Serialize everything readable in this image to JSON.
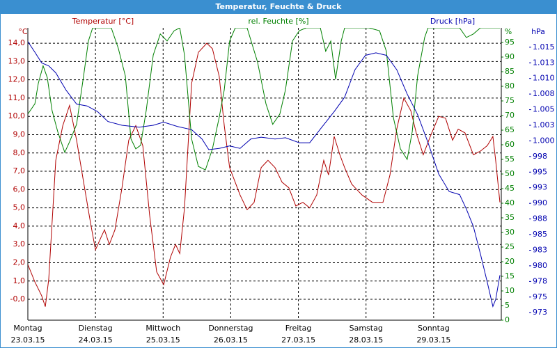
{
  "chart_data": {
    "type": "line",
    "title": "Temperatur, Feuchte & Druck",
    "y_unit": "°C",
    "y2_unit": "%",
    "y3_unit": "hPa",
    "xlim": [
      0,
      168
    ],
    "xticks": [
      {
        "value": 0,
        "label": "Montag",
        "date": "23.03.15"
      },
      {
        "value": 24,
        "label": "Dienstag",
        "date": "24.03.15"
      },
      {
        "value": 48,
        "label": "Mittwoch",
        "date": "25.03.15"
      },
      {
        "value": 72,
        "label": "Donnerstag",
        "date": "26.03.15"
      },
      {
        "value": 96,
        "label": "Freitag",
        "date": "27.03.15"
      },
      {
        "value": 120,
        "label": "Samstag",
        "date": "28.03.15"
      },
      {
        "value": 144,
        "label": "Sonntag",
        "date": "29.03.15"
      }
    ],
    "grid": true,
    "ylim": [
      -1.14,
      14.84
    ],
    "yticks": [
      {
        "value": 0,
        "label": "-0,0"
      },
      {
        "value": 1,
        "label": "1,0"
      },
      {
        "value": 2,
        "label": "2,0"
      },
      {
        "value": 3,
        "label": "3,0"
      },
      {
        "value": 4,
        "label": "4,0"
      },
      {
        "value": 5,
        "label": "5,0"
      },
      {
        "value": 6,
        "label": "6,0"
      },
      {
        "value": 7,
        "label": "7,0"
      },
      {
        "value": 8,
        "label": "8,0"
      },
      {
        "value": 9,
        "label": "9,0"
      },
      {
        "value": 10,
        "label": "10,0"
      },
      {
        "value": 11,
        "label": "11,0"
      },
      {
        "value": 12,
        "label": "12,0"
      },
      {
        "value": 13,
        "label": "13,0"
      },
      {
        "value": 14,
        "label": "14,0"
      }
    ],
    "y2lim": [
      0,
      100
    ],
    "y2ticks": [
      0,
      5,
      10,
      15,
      20,
      25,
      30,
      35,
      40,
      45,
      50,
      55,
      60,
      65,
      70,
      75,
      80,
      85,
      90,
      95
    ],
    "y3lim": [
      971.3,
      1018.1
    ],
    "y3ticks": [
      {
        "value": 972.5,
        "label": "973"
      },
      {
        "value": 975,
        "label": "975"
      },
      {
        "value": 977.5,
        "label": "978"
      },
      {
        "value": 980,
        "label": "980"
      },
      {
        "value": 982.5,
        "label": "983"
      },
      {
        "value": 985,
        "label": "985"
      },
      {
        "value": 987.5,
        "label": "988"
      },
      {
        "value": 990,
        "label": "990"
      },
      {
        "value": 992.5,
        "label": "993"
      },
      {
        "value": 995,
        "label": "995"
      },
      {
        "value": 997.5,
        "label": "998"
      },
      {
        "value": 1000,
        "label": "1.000"
      },
      {
        "value": 1002.5,
        "label": "1.003"
      },
      {
        "value": 1005,
        "label": "1.005"
      },
      {
        "value": 1007.5,
        "label": "1.008"
      },
      {
        "value": 1010,
        "label": "1.010"
      },
      {
        "value": 1012.5,
        "label": "1.013"
      },
      {
        "value": 1015,
        "label": "1.015"
      }
    ],
    "series": [
      {
        "name": "Temperatur [°C]",
        "color": "#b00000",
        "axis": "y",
        "x": [
          0,
          2.5,
          4.9,
          6.2,
          7.4,
          9.9,
          12.4,
          14.8,
          17.3,
          19.8,
          22.2,
          24,
          26,
          27.2,
          28.9,
          30.9,
          33.4,
          35.8,
          38.3,
          40.8,
          43.2,
          45.7,
          48.2,
          50.6,
          52.4,
          53.9,
          55.6,
          58.1,
          60.5,
          63.5,
          65.5,
          67.9,
          69.7,
          71.6,
          75.3,
          77.8,
          80.3,
          82.8,
          85.2,
          87.7,
          90.2,
          92.6,
          95.1,
          97.6,
          100,
          102.5,
          105,
          106.7,
          108.7,
          110.7,
          112.4,
          114.9,
          118.6,
          122.3,
          126,
          128.5,
          130.9,
          133.4,
          135.9,
          137.8,
          140.3,
          142.8,
          145.8,
          148.2,
          150.7,
          152.7,
          155.1,
          158.1,
          160.6,
          163,
          165,
          166,
          167.5
        ],
        "values": [
          1.9,
          0.95,
          0.2,
          -0.4,
          1.1,
          7.6,
          9.5,
          10.6,
          8.7,
          6.4,
          4.2,
          2.7,
          3.4,
          3.8,
          3.0,
          3.8,
          6.1,
          8.7,
          9.5,
          8.4,
          4.6,
          1.5,
          0.8,
          2.3,
          3.0,
          2.5,
          5.0,
          11.8,
          13.5,
          14.0,
          13.7,
          12.2,
          9.5,
          7.2,
          5.7,
          4.9,
          5.3,
          7.2,
          7.6,
          7.2,
          6.4,
          6.1,
          5.1,
          5.3,
          5.0,
          5.7,
          7.6,
          6.8,
          8.9,
          7.9,
          7.2,
          6.3,
          5.7,
          5.3,
          5.3,
          6.8,
          9.3,
          11.0,
          10.3,
          9.1,
          7.9,
          8.9,
          10.0,
          9.9,
          8.7,
          9.3,
          9.1,
          7.9,
          8.1,
          8.4,
          8.9,
          7.6,
          5.3
        ]
      },
      {
        "name": "rel. Feuchte [%]",
        "color": "#008000",
        "axis": "y2",
        "x": [
          0,
          2.5,
          3.7,
          5.4,
          6.9,
          8.6,
          10.6,
          13.1,
          14.8,
          17.3,
          19.8,
          21.5,
          23,
          29.6,
          32.1,
          34.6,
          36.6,
          38.3,
          40,
          42,
          44.5,
          47,
          49.4,
          51.9,
          53.9,
          55.6,
          58.1,
          60.5,
          63,
          65.5,
          67.9,
          69.7,
          71.6,
          73.6,
          77.8,
          81.5,
          84.5,
          86.9,
          89.4,
          91.4,
          93.9,
          96.3,
          98.8,
          103.8,
          105.7,
          107.5,
          109.2,
          111.2,
          112.4,
          121,
          124.8,
          127.2,
          129.7,
          132.2,
          134.6,
          136.4,
          138.3,
          140.8,
          142,
          153.2,
          155.6,
          158.1,
          160.6,
          167.5
        ],
        "values": [
          70.5,
          74,
          81,
          87,
          83,
          71.7,
          64.5,
          57.4,
          61,
          67,
          83.6,
          95.5,
          100,
          100,
          93,
          83.6,
          62,
          58.6,
          59.8,
          71.7,
          90.7,
          97.9,
          95.5,
          99,
          100,
          90.7,
          62,
          52.6,
          51.4,
          58.6,
          69.3,
          78.8,
          95.5,
          100,
          100,
          88.3,
          74,
          67,
          70.5,
          78.8,
          95.5,
          99,
          100,
          100,
          92,
          95.5,
          82.4,
          95.5,
          100,
          100,
          99,
          92,
          69.3,
          58.6,
          55,
          64.5,
          83.6,
          96.7,
          100,
          100,
          96.7,
          97.9,
          100,
          100
        ]
      },
      {
        "name": "Druck [hPa]",
        "color": "#0000b0",
        "axis": "y3",
        "x": [
          0,
          2.5,
          4.9,
          7.4,
          9.9,
          13.6,
          17.3,
          21,
          24.7,
          28.4,
          33.4,
          39.5,
          44.5,
          48.2,
          53.1,
          58.1,
          61.8,
          64.2,
          67.9,
          71.6,
          75.3,
          79.1,
          82.8,
          87.7,
          91.4,
          96.3,
          100,
          103.8,
          108.7,
          112.4,
          116.1,
          119.8,
          123.5,
          127.2,
          130.9,
          134.6,
          138.3,
          142,
          145.8,
          149.5,
          153.2,
          155.6,
          158.1,
          160.6,
          163,
          165,
          166,
          167.5
        ],
        "values": [
          1015.9,
          1014.2,
          1012.5,
          1012.0,
          1010.9,
          1008.1,
          1005.9,
          1005.6,
          1004.7,
          1003.1,
          1002.5,
          1002.2,
          1002.5,
          1003.0,
          1002.3,
          1001.8,
          1000.3,
          998.6,
          998.8,
          999.2,
          998.8,
          1000.3,
          1000.6,
          1000.3,
          1000.5,
          999.7,
          999.7,
          1001.9,
          1004.7,
          1007.0,
          1011.4,
          1013.7,
          1014.1,
          1013.7,
          1011.4,
          1007.5,
          1004.2,
          999.7,
          994.7,
          991.9,
          991.4,
          989.1,
          986.3,
          981.9,
          977.4,
          973.5,
          974.6,
          978.5
        ]
      }
    ]
  }
}
